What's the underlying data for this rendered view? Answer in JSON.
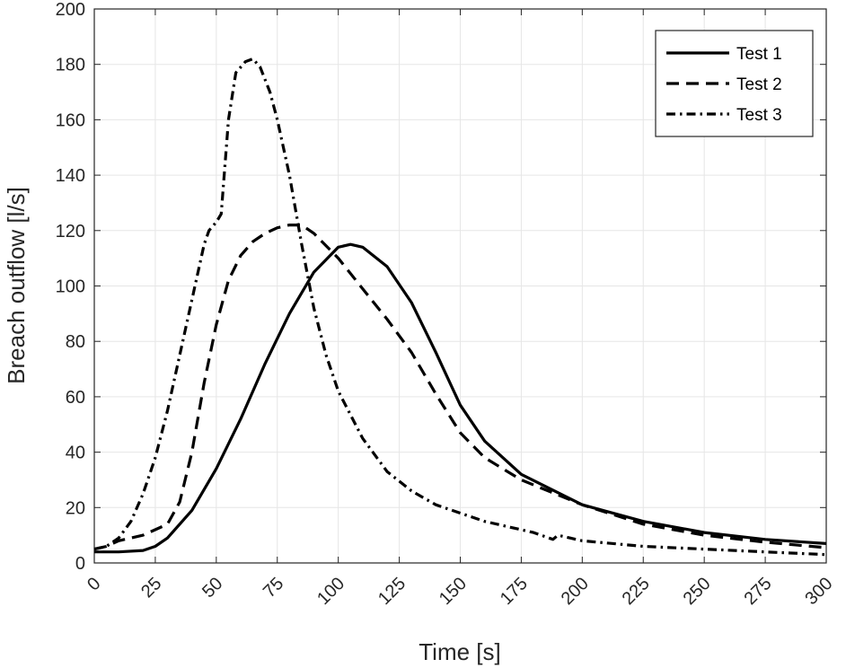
{
  "chart_data": {
    "type": "line",
    "title": "",
    "xlabel": "Time [s]",
    "ylabel": "Breach outflow [l/s]",
    "xlim": [
      0,
      300
    ],
    "ylim": [
      0,
      200
    ],
    "xticks": [
      0,
      25,
      50,
      75,
      100,
      125,
      150,
      175,
      200,
      225,
      250,
      275,
      300
    ],
    "yticks": [
      0,
      20,
      40,
      60,
      80,
      100,
      120,
      140,
      160,
      180,
      200
    ],
    "grid": true,
    "legend_position": "top-right",
    "series": [
      {
        "name": "Test 1",
        "style": "solid",
        "x": [
          0,
          10,
          20,
          25,
          30,
          40,
          50,
          60,
          70,
          80,
          90,
          100,
          105,
          110,
          120,
          130,
          140,
          150,
          160,
          175,
          200,
          225,
          250,
          275,
          300
        ],
        "y": [
          4,
          4,
          4.5,
          6,
          9,
          19,
          34,
          52,
          72,
          90,
          105,
          114,
          115,
          114,
          107,
          94,
          76,
          57,
          44,
          32,
          21,
          15,
          11,
          8.5,
          7
        ]
      },
      {
        "name": "Test 2",
        "style": "dashed",
        "x": [
          0,
          5,
          10,
          20,
          30,
          35,
          40,
          45,
          50,
          55,
          60,
          65,
          70,
          75,
          80,
          85,
          90,
          100,
          110,
          120,
          130,
          140,
          150,
          160,
          175,
          200,
          225,
          250,
          275,
          300
        ],
        "y": [
          5,
          6,
          8,
          10,
          14,
          22,
          40,
          65,
          86,
          102,
          111,
          116,
          119,
          121,
          122,
          122,
          119,
          110,
          99,
          88,
          76,
          61,
          47,
          38,
          30,
          21,
          14,
          10,
          7.5,
          5.5
        ]
      },
      {
        "name": "Test 3",
        "style": "dashdot",
        "x": [
          0,
          5,
          10,
          15,
          20,
          25,
          30,
          35,
          40,
          45,
          47,
          50,
          52,
          55,
          58,
          62,
          65,
          68,
          72,
          75,
          80,
          85,
          90,
          95,
          100,
          110,
          120,
          130,
          140,
          150,
          160,
          170,
          180,
          188,
          190,
          195,
          200,
          225,
          250,
          275,
          300
        ],
        "y": [
          5,
          6,
          9,
          15,
          25,
          38,
          55,
          75,
          95,
          115,
          120,
          123,
          126,
          160,
          177,
          181,
          182,
          179,
          170,
          160,
          140,
          115,
          92,
          75,
          62,
          45,
          33,
          26,
          21,
          18,
          15,
          13,
          11,
          8.5,
          10,
          9,
          8,
          6,
          5,
          4,
          3
        ]
      }
    ]
  }
}
